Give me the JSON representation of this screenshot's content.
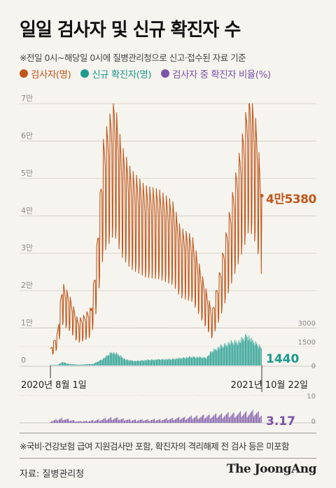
{
  "title": "일일 검사자 및 신규 확진자 수",
  "note": "※전일 0시~해당일 0시에 질병관리청으로 신고·접수된 자료 기준",
  "legend": [
    {
      "label": "검사자(명)",
      "color": "#c0561b"
    },
    {
      "label": "신규 확진자(명)",
      "color": "#1c9a8e"
    },
    {
      "label": "검사자 중 확진자 비율(%)",
      "color": "#7b55a8"
    }
  ],
  "footnote": "※국비·건강보험 급여 지원검사만 포함, 확진자의 격리해제 전 검사 등은 미포함",
  "source": "자료: 질병관리청",
  "brand": "The JoongAng",
  "chart_data": [
    {
      "type": "line",
      "series_name": "검사자(명)",
      "x_start": "2020년 8월 1일",
      "x_end": "2021년 10월 22일",
      "y_ticks": [
        "0",
        "1만",
        "2만",
        "3만",
        "4만",
        "5만",
        "6만",
        "7만"
      ],
      "ylim": [
        0,
        70000
      ],
      "last_value": 45380,
      "last_label": "4만5380",
      "anchors": [
        [
          0,
          4000
        ],
        [
          15,
          8000
        ],
        [
          25,
          20000
        ],
        [
          40,
          17000
        ],
        [
          58,
          11000
        ],
        [
          70,
          12000
        ],
        [
          86,
          14000
        ],
        [
          96,
          25000
        ],
        [
          112,
          54000
        ],
        [
          135,
          64000
        ],
        [
          150,
          53000
        ],
        [
          170,
          47000
        ],
        [
          200,
          43000
        ],
        [
          230,
          42000
        ],
        [
          260,
          39000
        ],
        [
          275,
          33000
        ],
        [
          300,
          31000
        ],
        [
          320,
          22000
        ],
        [
          342,
          13000
        ],
        [
          360,
          24000
        ],
        [
          380,
          38000
        ],
        [
          395,
          48000
        ],
        [
          410,
          58000
        ],
        [
          420,
          66000
        ],
        [
          430,
          62000
        ],
        [
          438,
          56000
        ],
        [
          445,
          44000
        ],
        [
          447,
          45380
        ]
      ],
      "color": "#c0561b"
    },
    {
      "type": "area",
      "series_name": "신규 확진자(명)",
      "y_ticks": [
        "0",
        "1500",
        "3000"
      ],
      "ylim": [
        0,
        3000
      ],
      "last_value": 1440,
      "last_label": "1440",
      "anchors": [
        [
          0,
          30
        ],
        [
          15,
          40
        ],
        [
          25,
          280
        ],
        [
          40,
          110
        ],
        [
          60,
          60
        ],
        [
          90,
          120
        ],
        [
          110,
          500
        ],
        [
          130,
          1050
        ],
        [
          142,
          900
        ],
        [
          160,
          450
        ],
        [
          180,
          350
        ],
        [
          200,
          420
        ],
        [
          230,
          480
        ],
        [
          255,
          500
        ],
        [
          275,
          580
        ],
        [
          300,
          680
        ],
        [
          330,
          620
        ],
        [
          342,
          1150
        ],
        [
          360,
          1500
        ],
        [
          380,
          1800
        ],
        [
          400,
          1900
        ],
        [
          416,
          2400
        ],
        [
          425,
          2000
        ],
        [
          440,
          1600
        ],
        [
          447,
          1440
        ]
      ],
      "color": "#1c9a8e"
    },
    {
      "type": "bar",
      "series_name": "검사자 중 확진자 비율(%)",
      "y_ticks": [
        "0",
        "10"
      ],
      "ylim": [
        0,
        10
      ],
      "last_value": 3.17,
      "last_label": "3.17",
      "anchors": [
        [
          0,
          0.6
        ],
        [
          25,
          1.5
        ],
        [
          60,
          0.5
        ],
        [
          90,
          0.8
        ],
        [
          130,
          1.7
        ],
        [
          170,
          1.0
        ],
        [
          230,
          1.1
        ],
        [
          300,
          2.0
        ],
        [
          350,
          2.6
        ],
        [
          400,
          3.2
        ],
        [
          430,
          3.6
        ],
        [
          447,
          3.17
        ]
      ],
      "color": "#7b55a8"
    }
  ]
}
